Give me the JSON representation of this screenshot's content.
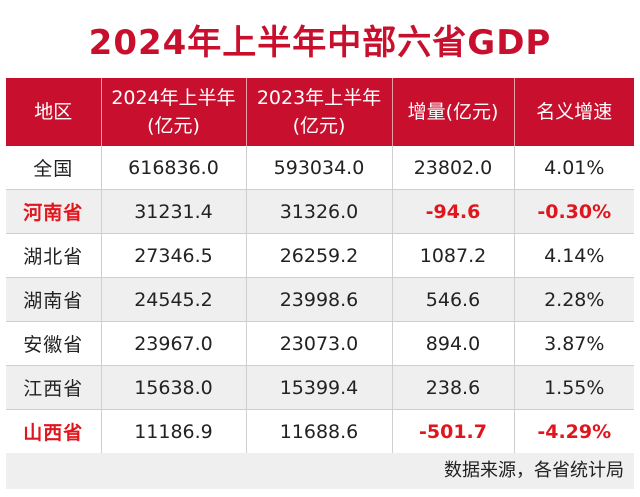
{
  "title": "2024年上半年中部六省GDP",
  "colors": {
    "accent": "#c8102e",
    "negative": "#e0161e",
    "stripe": "#efefef"
  },
  "columns": {
    "region": "地区",
    "h2024_line1": "2024年上半年",
    "h2024_line2": "(亿元)",
    "h2023_line1": "2023年上半年",
    "h2023_line2": "(亿元)",
    "increase": "增量(亿元)",
    "growth": "名义增速"
  },
  "rows": [
    {
      "region": "全国",
      "v2024": "616836.0",
      "v2023": "593034.0",
      "increase": "23802.0",
      "growth": "4.01%"
    },
    {
      "region": "河南省",
      "v2024": "31231.4",
      "v2023": "31326.0",
      "increase": "-94.6",
      "growth": "-0.30%"
    },
    {
      "region": "湖北省",
      "v2024": "27346.5",
      "v2023": "26259.2",
      "increase": "1087.2",
      "growth": "4.14%"
    },
    {
      "region": "湖南省",
      "v2024": "24545.2",
      "v2023": "23998.6",
      "increase": "546.6",
      "growth": "2.28%"
    },
    {
      "region": "安徽省",
      "v2024": "23967.0",
      "v2023": "23073.0",
      "increase": "894.0",
      "growth": "3.87%"
    },
    {
      "region": "江西省",
      "v2024": "15638.0",
      "v2023": "15399.4",
      "increase": "238.6",
      "growth": "1.55%"
    },
    {
      "region": "山西省",
      "v2024": "11186.9",
      "v2023": "11688.6",
      "increase": "-501.7",
      "growth": "-4.29%"
    }
  ],
  "source": "数据来源，各省统计局"
}
